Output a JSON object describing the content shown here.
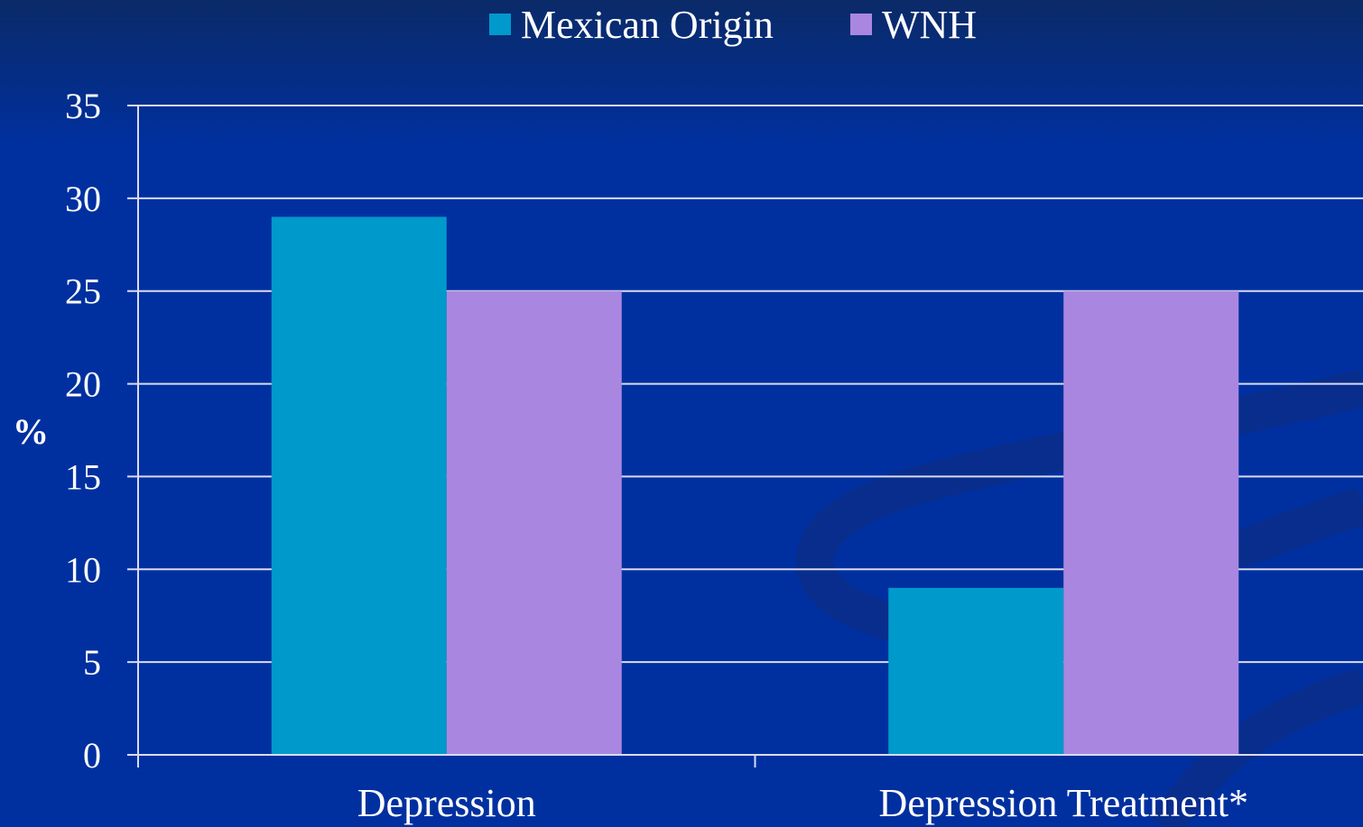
{
  "chart_data": {
    "type": "bar",
    "title": "",
    "xlabel": "",
    "ylabel": "%",
    "ylim": [
      0,
      35
    ],
    "yticks": [
      0,
      5,
      10,
      15,
      20,
      25,
      30,
      35
    ],
    "grid": true,
    "legend_position": "top-center",
    "categories": [
      "Depression",
      "Depression Treatment*"
    ],
    "series": [
      {
        "name": "Mexican Origin",
        "color": "#0099cc",
        "values": [
          29,
          9
        ]
      },
      {
        "name": "WNH",
        "color": "#a987e0",
        "values": [
          25,
          25
        ]
      }
    ]
  },
  "colors": {
    "background": "#002a8c",
    "background_top": "#082a6b",
    "gridline": "#d9dcf0",
    "text": "#ffffff"
  }
}
